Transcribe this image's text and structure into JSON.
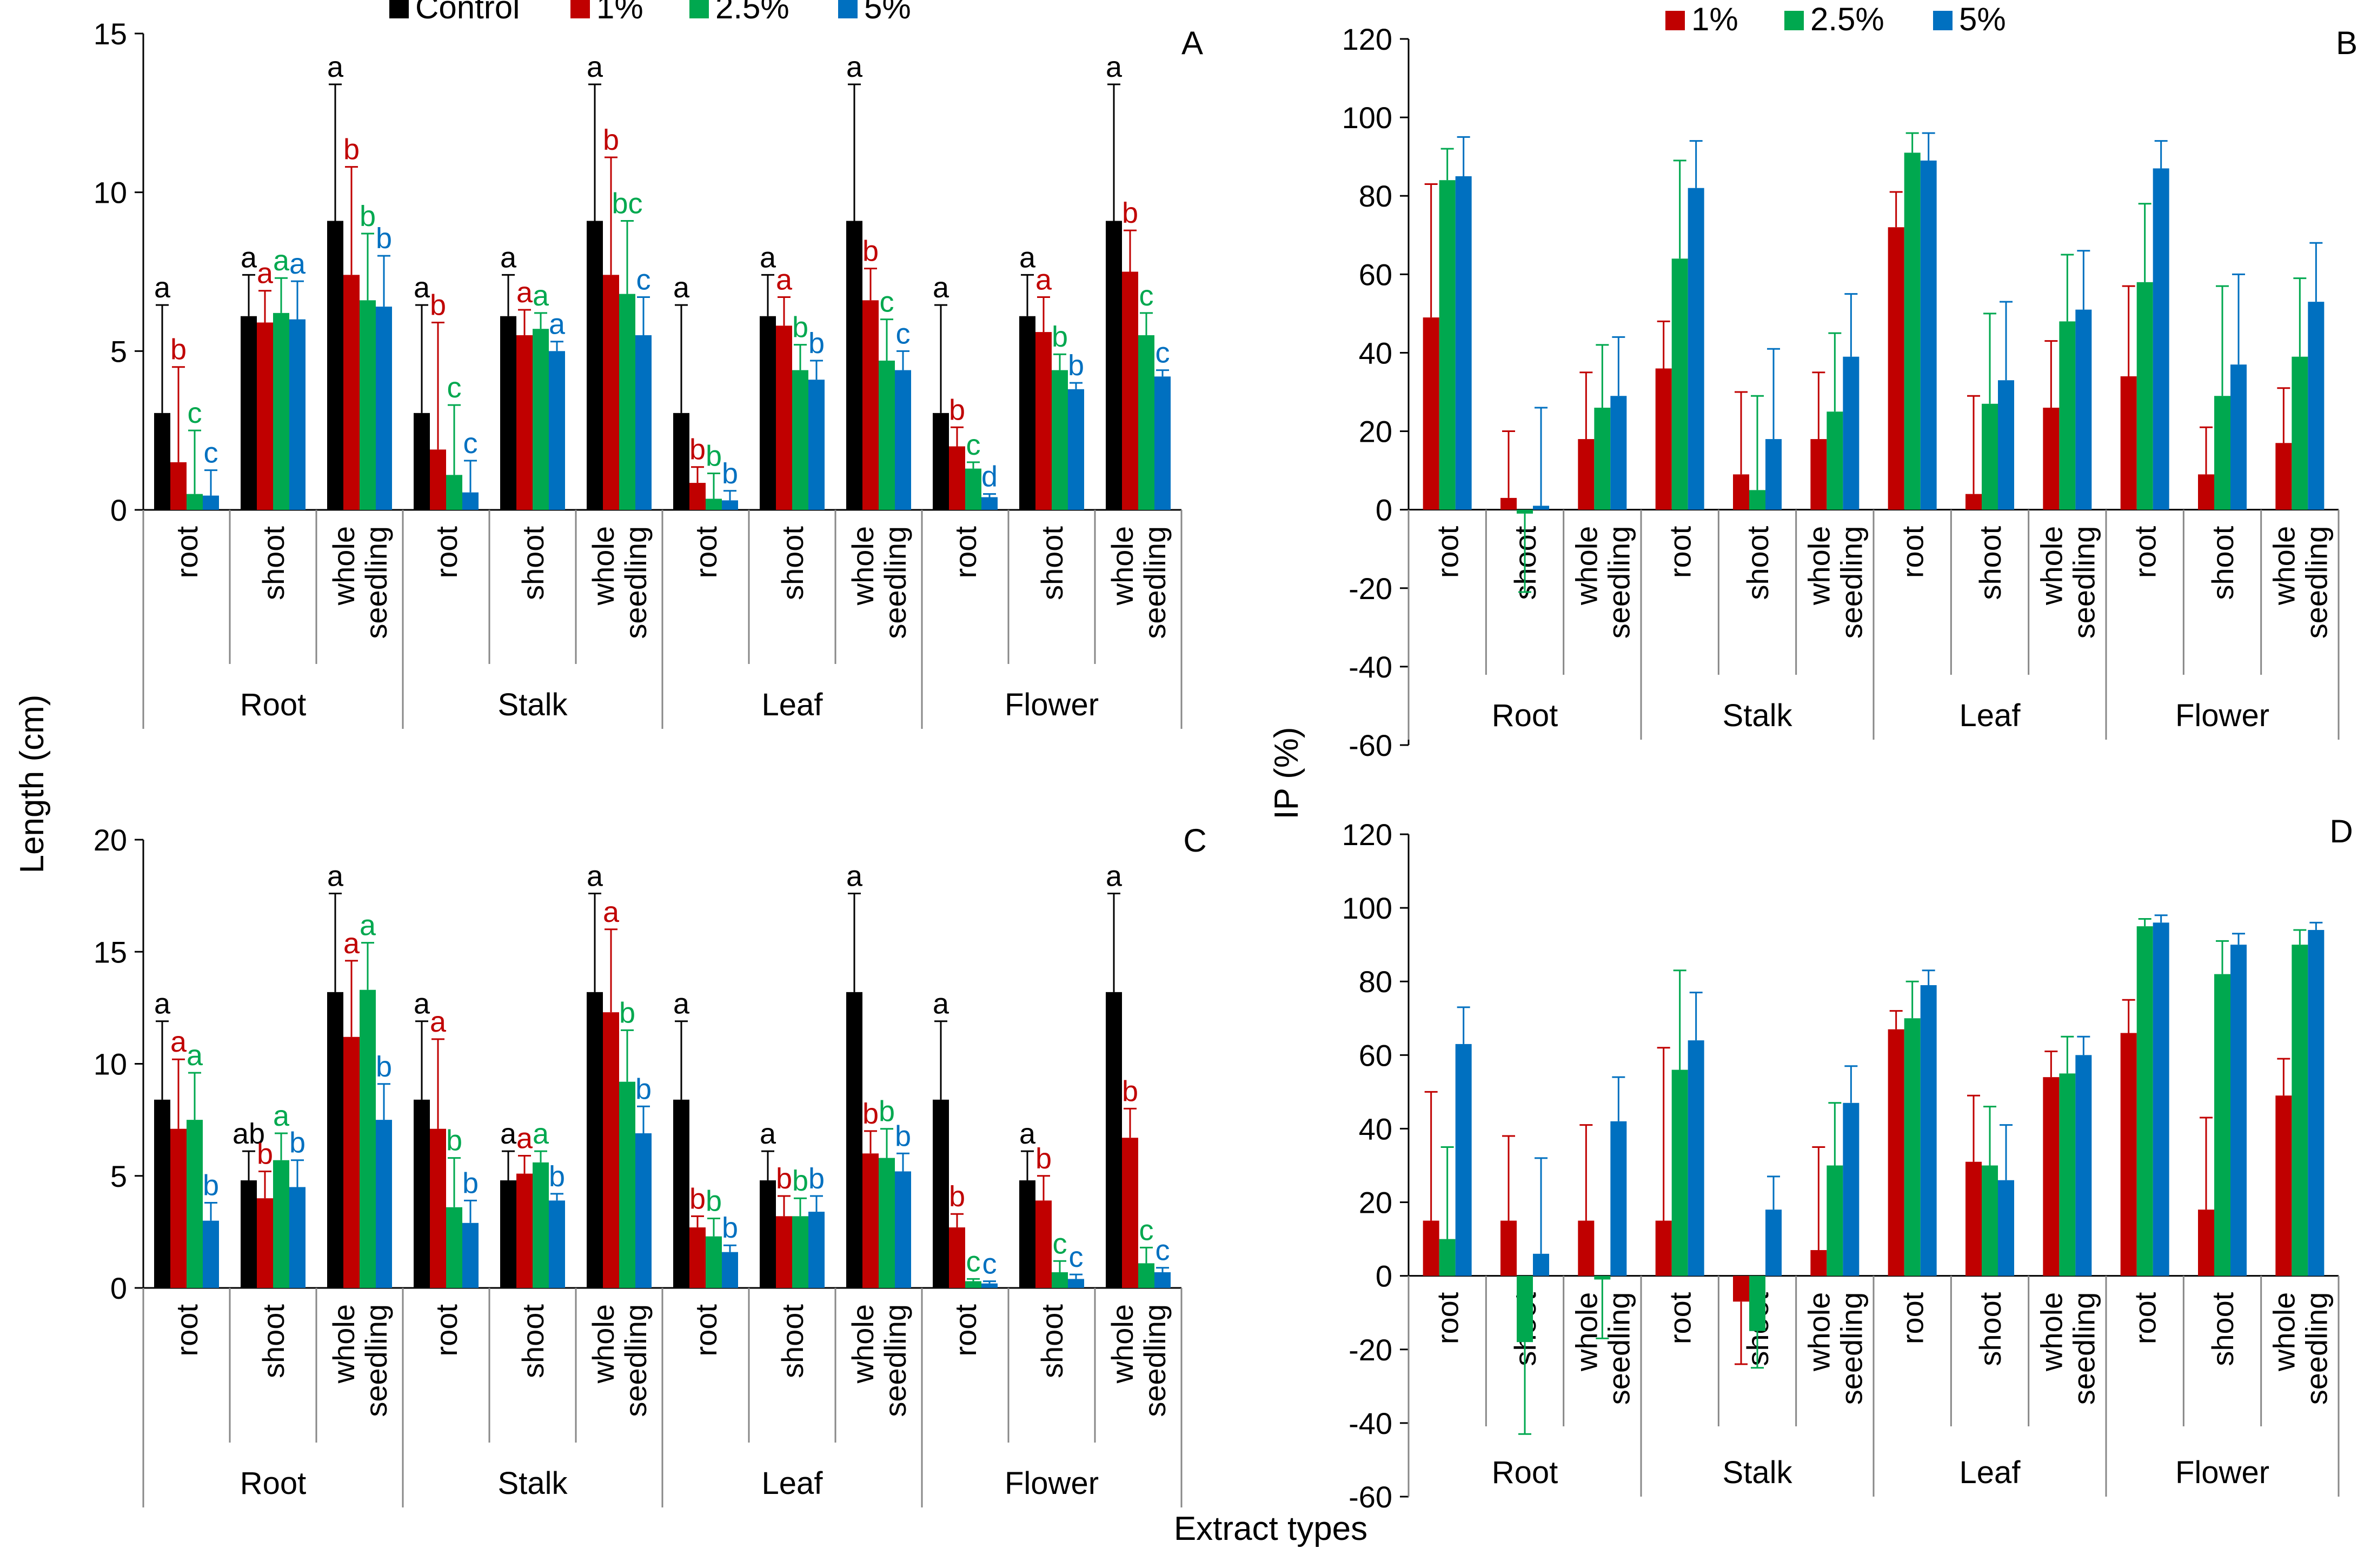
{
  "figure": {
    "ylabel_left": "Length (cm)",
    "ylabel_right": "IP (%)",
    "xlabel": "Extract types",
    "colors": {
      "Control": "#000000",
      "1%": "#c00000",
      "2.5%": "#00a84f",
      "5%": "#0070c0"
    },
    "groups": [
      "Root",
      "Stalk",
      "Leaf",
      "Flower"
    ],
    "subcats": [
      "root",
      "shoot",
      "whole|seedling"
    ]
  },
  "chart_data": [
    {
      "id": "A",
      "panel_label": "A",
      "type": "bar",
      "ylim": [
        0,
        15
      ],
      "yticks": [
        0,
        5,
        10,
        15
      ],
      "legend": [
        "Control",
        "1%",
        "2.5%",
        "5%"
      ],
      "series": [
        {
          "name": "Control",
          "values": [
            3.05,
            6.1,
            9.1,
            3.05,
            6.1,
            9.1,
            3.05,
            6.1,
            9.1,
            3.05,
            6.1,
            9.1
          ],
          "errors": [
            3.4,
            1.3,
            4.3,
            3.4,
            1.3,
            4.3,
            3.4,
            1.3,
            4.3,
            3.4,
            1.3,
            4.3
          ],
          "letters": [
            "a",
            "a",
            "a",
            "a",
            "a",
            "a",
            "a",
            "a",
            "a",
            "a",
            "a",
            "a"
          ]
        },
        {
          "name": "1%",
          "values": [
            1.5,
            5.9,
            7.4,
            1.9,
            5.5,
            7.4,
            0.85,
            5.8,
            6.6,
            2.0,
            5.6,
            7.5
          ],
          "errors": [
            3.0,
            1.0,
            3.4,
            4.0,
            0.8,
            3.7,
            0.5,
            0.9,
            1.0,
            0.6,
            1.1,
            1.3
          ],
          "letters": [
            "b",
            "a",
            "b",
            "b",
            "a",
            "b",
            "b",
            "a",
            "b",
            "b",
            "a",
            "b"
          ]
        },
        {
          "name": "2.5%",
          "values": [
            0.5,
            6.2,
            6.6,
            1.1,
            5.7,
            6.8,
            0.35,
            4.4,
            4.7,
            1.3,
            4.4,
            5.5
          ],
          "errors": [
            2.0,
            1.1,
            2.1,
            2.2,
            0.5,
            2.3,
            0.8,
            0.8,
            1.3,
            0.2,
            0.5,
            0.7
          ],
          "letters": [
            "c",
            "a",
            "b",
            "c",
            "a",
            "bc",
            "b",
            "b",
            "c",
            "c",
            "b",
            "c"
          ]
        },
        {
          "name": "5%",
          "values": [
            0.45,
            6.0,
            6.4,
            0.55,
            5.0,
            5.5,
            0.3,
            4.1,
            4.4,
            0.4,
            3.8,
            4.2
          ],
          "errors": [
            0.8,
            1.2,
            1.6,
            1.0,
            0.3,
            1.2,
            0.3,
            0.6,
            0.6,
            0.1,
            0.2,
            0.2
          ],
          "letters": [
            "c",
            "a",
            "b",
            "c",
            "a",
            "c",
            "b",
            "b",
            "c",
            "d",
            "b",
            "c"
          ]
        }
      ]
    },
    {
      "id": "B",
      "panel_label": "B",
      "type": "bar",
      "ylim": [
        -60,
        120
      ],
      "yticks": [
        -60,
        -40,
        -20,
        0,
        20,
        40,
        60,
        80,
        100,
        120
      ],
      "legend": [
        "1%",
        "2.5%",
        "5%"
      ],
      "series": [
        {
          "name": "1%",
          "values": [
            49,
            3,
            18,
            36,
            9,
            18,
            72,
            4,
            26,
            34,
            9,
            17
          ],
          "errors": [
            34,
            17,
            17,
            12,
            21,
            17,
            9,
            25,
            17,
            23,
            12,
            14
          ]
        },
        {
          "name": "2.5%",
          "values": [
            84,
            -1,
            26,
            64,
            5,
            25,
            91,
            27,
            48,
            58,
            29,
            39
          ],
          "errors": [
            8,
            20,
            16,
            25,
            24,
            20,
            5,
            23,
            17,
            20,
            28,
            20
          ]
        },
        {
          "name": "5%",
          "values": [
            85,
            1,
            29,
            82,
            18,
            39,
            89,
            33,
            51,
            87,
            37,
            53
          ],
          "errors": [
            10,
            25,
            15,
            12,
            23,
            16,
            7,
            20,
            15,
            7,
            23,
            15
          ]
        }
      ]
    },
    {
      "id": "C",
      "panel_label": "C",
      "type": "bar",
      "ylim": [
        0,
        20
      ],
      "yticks": [
        0,
        5,
        10,
        15,
        20
      ],
      "legend": [
        "Control",
        "1%",
        "2.5%",
        "5%"
      ],
      "series": [
        {
          "name": "Control",
          "values": [
            8.4,
            4.8,
            13.2,
            8.4,
            4.8,
            13.2,
            8.4,
            4.8,
            13.2,
            8.4,
            4.8,
            13.2
          ],
          "errors": [
            3.5,
            1.3,
            4.4,
            3.5,
            1.3,
            4.4,
            3.5,
            1.3,
            4.4,
            3.5,
            1.3,
            4.4
          ],
          "letters": [
            "a",
            "ab",
            "a",
            "a",
            "a",
            "a",
            "a",
            "a",
            "a",
            "a",
            "a",
            "a"
          ]
        },
        {
          "name": "1%",
          "values": [
            7.1,
            4.0,
            11.2,
            7.1,
            5.1,
            12.3,
            2.7,
            3.2,
            6.0,
            2.7,
            3.9,
            6.7
          ],
          "errors": [
            3.1,
            1.2,
            3.4,
            4.0,
            0.8,
            3.7,
            0.5,
            0.9,
            1.0,
            0.6,
            1.1,
            1.3
          ],
          "letters": [
            "a",
            "b",
            "a",
            "a",
            "a",
            "a",
            "b",
            "b",
            "b",
            "b",
            "b",
            "b"
          ]
        },
        {
          "name": "2.5%",
          "values": [
            7.5,
            5.7,
            13.3,
            3.6,
            5.6,
            9.2,
            2.3,
            3.2,
            5.8,
            0.3,
            0.7,
            1.1
          ],
          "errors": [
            2.1,
            1.2,
            2.1,
            2.2,
            0.5,
            2.3,
            0.8,
            0.8,
            1.3,
            0.1,
            0.5,
            0.7
          ],
          "letters": [
            "a",
            "a",
            "a",
            "b",
            "a",
            "b",
            "b",
            "b",
            "b",
            "c",
            "c",
            "c"
          ]
        },
        {
          "name": "5%",
          "values": [
            3.0,
            4.5,
            7.5,
            2.9,
            3.9,
            6.9,
            1.6,
            3.4,
            5.2,
            0.2,
            0.4,
            0.7
          ],
          "errors": [
            0.8,
            1.2,
            1.6,
            1.0,
            0.3,
            1.2,
            0.3,
            0.7,
            0.8,
            0.1,
            0.2,
            0.2
          ],
          "letters": [
            "b",
            "b",
            "b",
            "b",
            "b",
            "b",
            "b",
            "b",
            "b",
            "c",
            "c",
            "c"
          ]
        }
      ]
    },
    {
      "id": "D",
      "panel_label": "D",
      "type": "bar",
      "ylim": [
        -60,
        120
      ],
      "yticks": [
        -60,
        -40,
        -20,
        0,
        20,
        40,
        60,
        80,
        100,
        120
      ],
      "legend": [
        "1%",
        "2.5%",
        "5%"
      ],
      "series": [
        {
          "name": "1%",
          "values": [
            15,
            15,
            15,
            15,
            -7,
            7,
            67,
            31,
            54,
            66,
            18,
            49
          ],
          "errors": [
            35,
            23,
            26,
            47,
            17,
            28,
            5,
            18,
            7,
            9,
            25,
            10
          ]
        },
        {
          "name": "2.5%",
          "values": [
            10,
            -18,
            -1,
            56,
            -15,
            30,
            70,
            30,
            55,
            95,
            82,
            90
          ],
          "errors": [
            25,
            25,
            16,
            27,
            10,
            17,
            10,
            16,
            10,
            2,
            9,
            4
          ]
        },
        {
          "name": "5%",
          "values": [
            63,
            6,
            42,
            64,
            18,
            47,
            79,
            26,
            60,
            96,
            90,
            94
          ],
          "errors": [
            10,
            26,
            12,
            13,
            9,
            10,
            4,
            15,
            5,
            2,
            3,
            2
          ]
        }
      ]
    }
  ]
}
